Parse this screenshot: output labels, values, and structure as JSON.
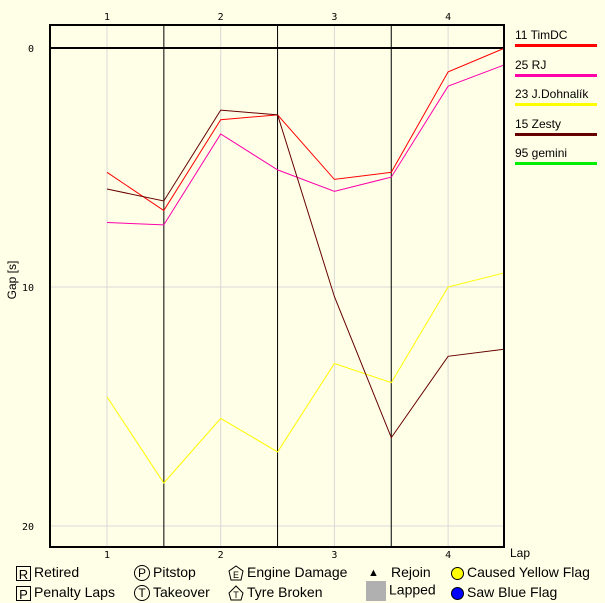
{
  "chart_data": {
    "type": "line",
    "title": "",
    "xlabel": "Lap",
    "ylabel": "Gap [s]",
    "ylim": [
      0,
      20
    ],
    "y_inverted": true,
    "yticks": [
      "0",
      "10",
      "20"
    ],
    "xticks": [
      "1",
      "2",
      "3",
      "4"
    ],
    "grid": true,
    "legend_position": "right",
    "x": [
      1,
      1.5,
      2,
      2.5,
      3,
      3.5,
      4,
      4.5
    ],
    "series": [
      {
        "name": "11 TimDC",
        "color": "#ff0000",
        "values": [
          5.2,
          6.8,
          3.0,
          2.8,
          5.5,
          5.2,
          1.0,
          0.0
        ]
      },
      {
        "name": "25 RJ",
        "color": "#ff00aa",
        "values": [
          7.3,
          7.4,
          3.6,
          5.1,
          6.0,
          5.4,
          1.6,
          0.7
        ]
      },
      {
        "name": "23 J.Dohnalík",
        "color": "#ffff00",
        "values": [
          14.6,
          18.2,
          15.5,
          16.9,
          13.2,
          14.0,
          10.0,
          9.4
        ]
      },
      {
        "name": "15 Zesty",
        "color": "#660000",
        "values": [
          5.9,
          6.4,
          2.6,
          2.8,
          10.4,
          16.3,
          12.9,
          12.6
        ]
      },
      {
        "name": "95 gemini",
        "color": "#00ee00",
        "values": []
      }
    ]
  },
  "axes": {
    "ylabel": "Gap [s]",
    "xlabel": "Lap",
    "yticks": [
      {
        "label": "0",
        "value": 0
      },
      {
        "label": "10",
        "value": 10
      },
      {
        "label": "20",
        "value": 20
      }
    ],
    "xticks": [
      "1",
      "2",
      "3",
      "4"
    ]
  },
  "legend": [
    {
      "label": "11 TimDC",
      "color": "#ff0000"
    },
    {
      "label": "25 RJ",
      "color": "#ff00aa"
    },
    {
      "label": "23 J.Dohnalík",
      "color": "#ffff00"
    },
    {
      "label": "15 Zesty",
      "color": "#660000"
    },
    {
      "label": "95 gemini",
      "color": "#00ee00"
    }
  ],
  "key": {
    "retired": {
      "symbol": "R",
      "label": "Retired"
    },
    "penalty": {
      "symbol": "P",
      "label": "Penalty Laps"
    },
    "pitstop": {
      "symbol": "P",
      "label": "Pitstop"
    },
    "takeover": {
      "symbol": "T",
      "label": "Takeover"
    },
    "engine": {
      "symbol": "E",
      "label": "Engine Damage"
    },
    "tyre": {
      "symbol": "T",
      "label": "Tyre Broken"
    },
    "rejoin": {
      "symbol": "▲",
      "label": "Rejoin"
    },
    "lapped": {
      "label": "Lapped",
      "color": "#b0b0b0"
    },
    "yellow": {
      "label": "Caused Yellow Flag",
      "color": "#ffff00"
    },
    "blue": {
      "label": "Saw Blue Flag",
      "color": "#0000ff"
    }
  }
}
